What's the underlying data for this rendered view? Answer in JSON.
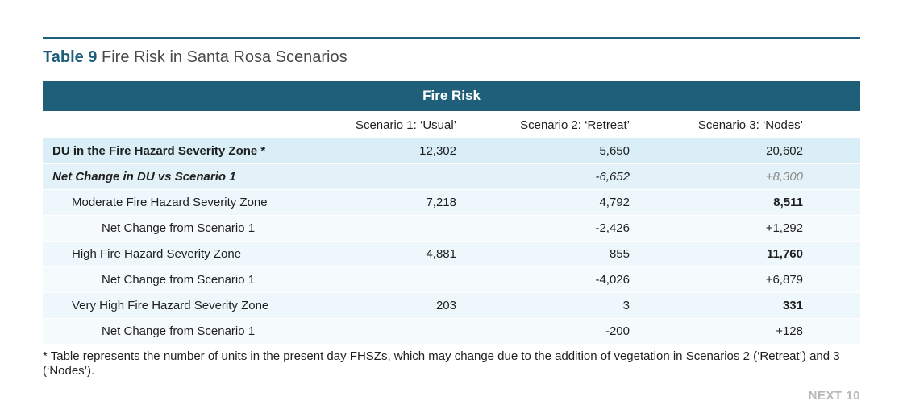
{
  "title": {
    "number": "Table 9",
    "text": "Fire Risk in Santa Rosa Scenarios"
  },
  "band": "Fire Risk",
  "columns": [
    "",
    "Scenario 1: ‘Usual’",
    "Scenario 2: ‘Retreat’",
    "Scenario 3: ‘Nodes’"
  ],
  "rows": [
    {
      "label": "DU in the Fire Hazard Severity Zone *",
      "s1": "12,302",
      "s2": "5,650",
      "s3": "20,602"
    },
    {
      "label": "Net Change in DU vs Scenario 1",
      "s1": "",
      "s2": "-6,652",
      "s3": "+8,300"
    },
    {
      "label": "Moderate Fire Hazard Severity Zone",
      "s1": "7,218",
      "s2": "4,792",
      "s3": "8,511"
    },
    {
      "label": "Net Change from Scenario 1",
      "s1": "",
      "s2": "-2,426",
      "s3": "+1,292"
    },
    {
      "label": "High Fire Hazard Severity Zone",
      "s1": "4,881",
      "s2": "855",
      "s3": "11,760"
    },
    {
      "label": "Net Change from Scenario 1",
      "s1": "",
      "s2": "-4,026",
      "s3": "+6,879"
    },
    {
      "label": "Very High Fire Hazard Severity Zone",
      "s1": "203",
      "s2": "3",
      "s3": "331"
    },
    {
      "label": "Net Change from Scenario 1",
      "s1": "",
      "s2": "-200",
      "s3": "+128"
    }
  ],
  "footnote": "* Table represents the number of units in the present day FHSZs, which may change due to the addition of vegetation in Scenarios 2 (‘Retreat’) and 3 (‘Nodes’).",
  "next_label": "NEXT 10",
  "colors": {
    "accent": "#1d5f7a",
    "band": "#1f5f7a",
    "row_light": "#d9eef7"
  }
}
